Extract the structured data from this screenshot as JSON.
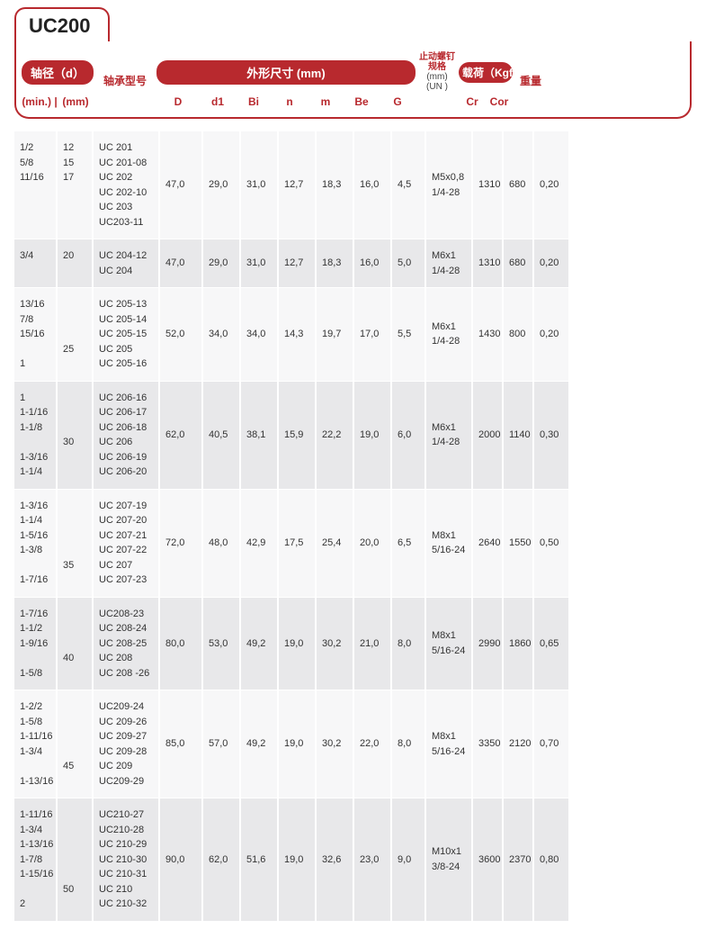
{
  "title": "UC200",
  "colors": {
    "accent": "#b8292e",
    "row_bg": "#f7f7f8",
    "row_alt_bg": "#e8e8ea",
    "text": "#333333"
  },
  "headers": {
    "shaft_dia_label": "轴径（d）",
    "min_label": "(min.)",
    "mm_label": "(mm)",
    "bearing_model": "轴承型号",
    "outer_dim_label": "外形尺寸 (mm)",
    "D": "D",
    "d1": "d1",
    "Bi": "Bi",
    "n": "n",
    "m": "m",
    "Be": "Be",
    "G": "G",
    "setscrew_label": "止动螺钉规格",
    "setscrew_sub1": "(mm)",
    "setscrew_sub2": "(UN )",
    "load_label": "载荷（Kgf）",
    "Cr": "Cr",
    "Cor": "Cor",
    "weight": "重量"
  },
  "columns": [
    "min",
    "mm",
    "model",
    "D",
    "d1",
    "Bi",
    "n",
    "m",
    "Be",
    "G",
    "screw",
    "Cr",
    "Cor",
    "weight"
  ],
  "rows": [
    {
      "alt": false,
      "min": [
        "1/2",
        "5/8",
        "11/16"
      ],
      "mm": [
        "12",
        "15",
        "17"
      ],
      "model": [
        "UC 201",
        "UC 201-08",
        "UC 202",
        "UC 202-10",
        "UC 203",
        "UC203-11"
      ],
      "D": "47,0",
      "d1": "29,0",
      "Bi": "31,0",
      "n": "12,7",
      "m": "18,3",
      "Be": "16,0",
      "G": "4,5",
      "screw": [
        "M5x0,8",
        "1/4-28"
      ],
      "Cr": "1310",
      "Cor": "680",
      "weight": "0,20"
    },
    {
      "alt": true,
      "min": [
        "3/4"
      ],
      "mm": [
        "20"
      ],
      "model": [
        "UC 204-12",
        "UC 204"
      ],
      "D": "47,0",
      "d1": "29,0",
      "Bi": "31,0",
      "n": "12,7",
      "m": "18,3",
      "Be": "16,0",
      "G": "5,0",
      "screw": [
        "M6x1",
        "1/4-28"
      ],
      "Cr": "1310",
      "Cor": "680",
      "weight": "0,20"
    },
    {
      "alt": false,
      "min": [
        "13/16",
        "7/8",
        "15/16",
        "",
        "1"
      ],
      "mm": [
        "",
        "",
        "",
        "25"
      ],
      "model": [
        "UC 205-13",
        "UC 205-14",
        "UC 205-15",
        "UC 205",
        "UC 205-16"
      ],
      "D": "52,0",
      "d1": "34,0",
      "Bi": "34,0",
      "n": "14,3",
      "m": "19,7",
      "Be": "17,0",
      "G": "5,5",
      "screw": [
        "M6x1",
        "1/4-28"
      ],
      "Cr": "1430",
      "Cor": "800",
      "weight": "0,20"
    },
    {
      "alt": true,
      "min": [
        "1",
        "1-1/16",
        "1-1/8",
        "",
        "1-3/16",
        "1-1/4"
      ],
      "mm": [
        "",
        "",
        "",
        "30"
      ],
      "model": [
        "UC 206-16",
        "UC 206-17",
        "UC 206-18",
        "UC 206",
        "UC 206-19",
        "UC 206-20"
      ],
      "D": "62,0",
      "d1": "40,5",
      "Bi": "38,1",
      "n": "15,9",
      "m": "22,2",
      "Be": "19,0",
      "G": "6,0",
      "screw": [
        "M6x1",
        "1/4-28"
      ],
      "Cr": "2000",
      "Cor": "1140",
      "weight": "0,30"
    },
    {
      "alt": false,
      "min": [
        "1-3/16",
        "1-1/4",
        "1-5/16",
        "1-3/8",
        "",
        "1-7/16"
      ],
      "mm": [
        "",
        "",
        "",
        "",
        "35"
      ],
      "model": [
        "UC 207-19",
        "UC 207-20",
        "UC 207-21",
        "UC 207-22",
        "UC 207",
        "UC 207-23"
      ],
      "D": "72,0",
      "d1": "48,0",
      "Bi": "42,9",
      "n": "17,5",
      "m": "25,4",
      "Be": "20,0",
      "G": "6,5",
      "screw": [
        "M8x1",
        "5/16-24"
      ],
      "Cr": "2640",
      "Cor": "1550",
      "weight": "0,50"
    },
    {
      "alt": true,
      "min": [
        "1-7/16",
        "1-1/2",
        "1-9/16",
        "",
        "1-5/8"
      ],
      "mm": [
        "",
        "",
        "",
        "40"
      ],
      "model": [
        "UC208-23",
        "UC 208-24",
        "UC 208-25",
        "UC 208",
        "UC 208 -26"
      ],
      "D": "80,0",
      "d1": "53,0",
      "Bi": "49,2",
      "n": "19,0",
      "m": "30,2",
      "Be": "21,0",
      "G": "8,0",
      "screw": [
        "M8x1",
        "5/16-24"
      ],
      "Cr": "2990",
      "Cor": "1860",
      "weight": "0,65"
    },
    {
      "alt": false,
      "min": [
        "1-2/2",
        "1-5/8",
        "1-11/16",
        "1-3/4",
        "",
        "1-13/16"
      ],
      "mm": [
        "",
        "",
        "",
        "",
        "45"
      ],
      "model": [
        "UC209-24",
        "UC 209-26",
        "UC 209-27",
        "UC 209-28",
        "UC 209",
        "UC209-29"
      ],
      "D": "85,0",
      "d1": "57,0",
      "Bi": "49,2",
      "n": "19,0",
      "m": "30,2",
      "Be": "22,0",
      "G": "8,0",
      "screw": [
        "M8x1",
        "5/16-24"
      ],
      "Cr": "3350",
      "Cor": "2120",
      "weight": "0,70"
    },
    {
      "alt": true,
      "min": [
        "1-11/16",
        "1-3/4",
        "1-13/16",
        "1-7/8",
        "1-15/16",
        "",
        "2"
      ],
      "mm": [
        "",
        "",
        "",
        "",
        "",
        "50"
      ],
      "model": [
        "UC210-27",
        "UC210-28",
        "UC 210-29",
        "UC 210-30",
        "UC 210-31",
        "UC 210",
        "UC 210-32"
      ],
      "D": "90,0",
      "d1": "62,0",
      "Bi": "51,6",
      "n": "19,0",
      "m": "32,6",
      "Be": "23,0",
      "G": "9,0",
      "screw": [
        "M10x1",
        "3/8-24"
      ],
      "Cr": "3600",
      "Cor": "2370",
      "weight": "0,80"
    }
  ]
}
